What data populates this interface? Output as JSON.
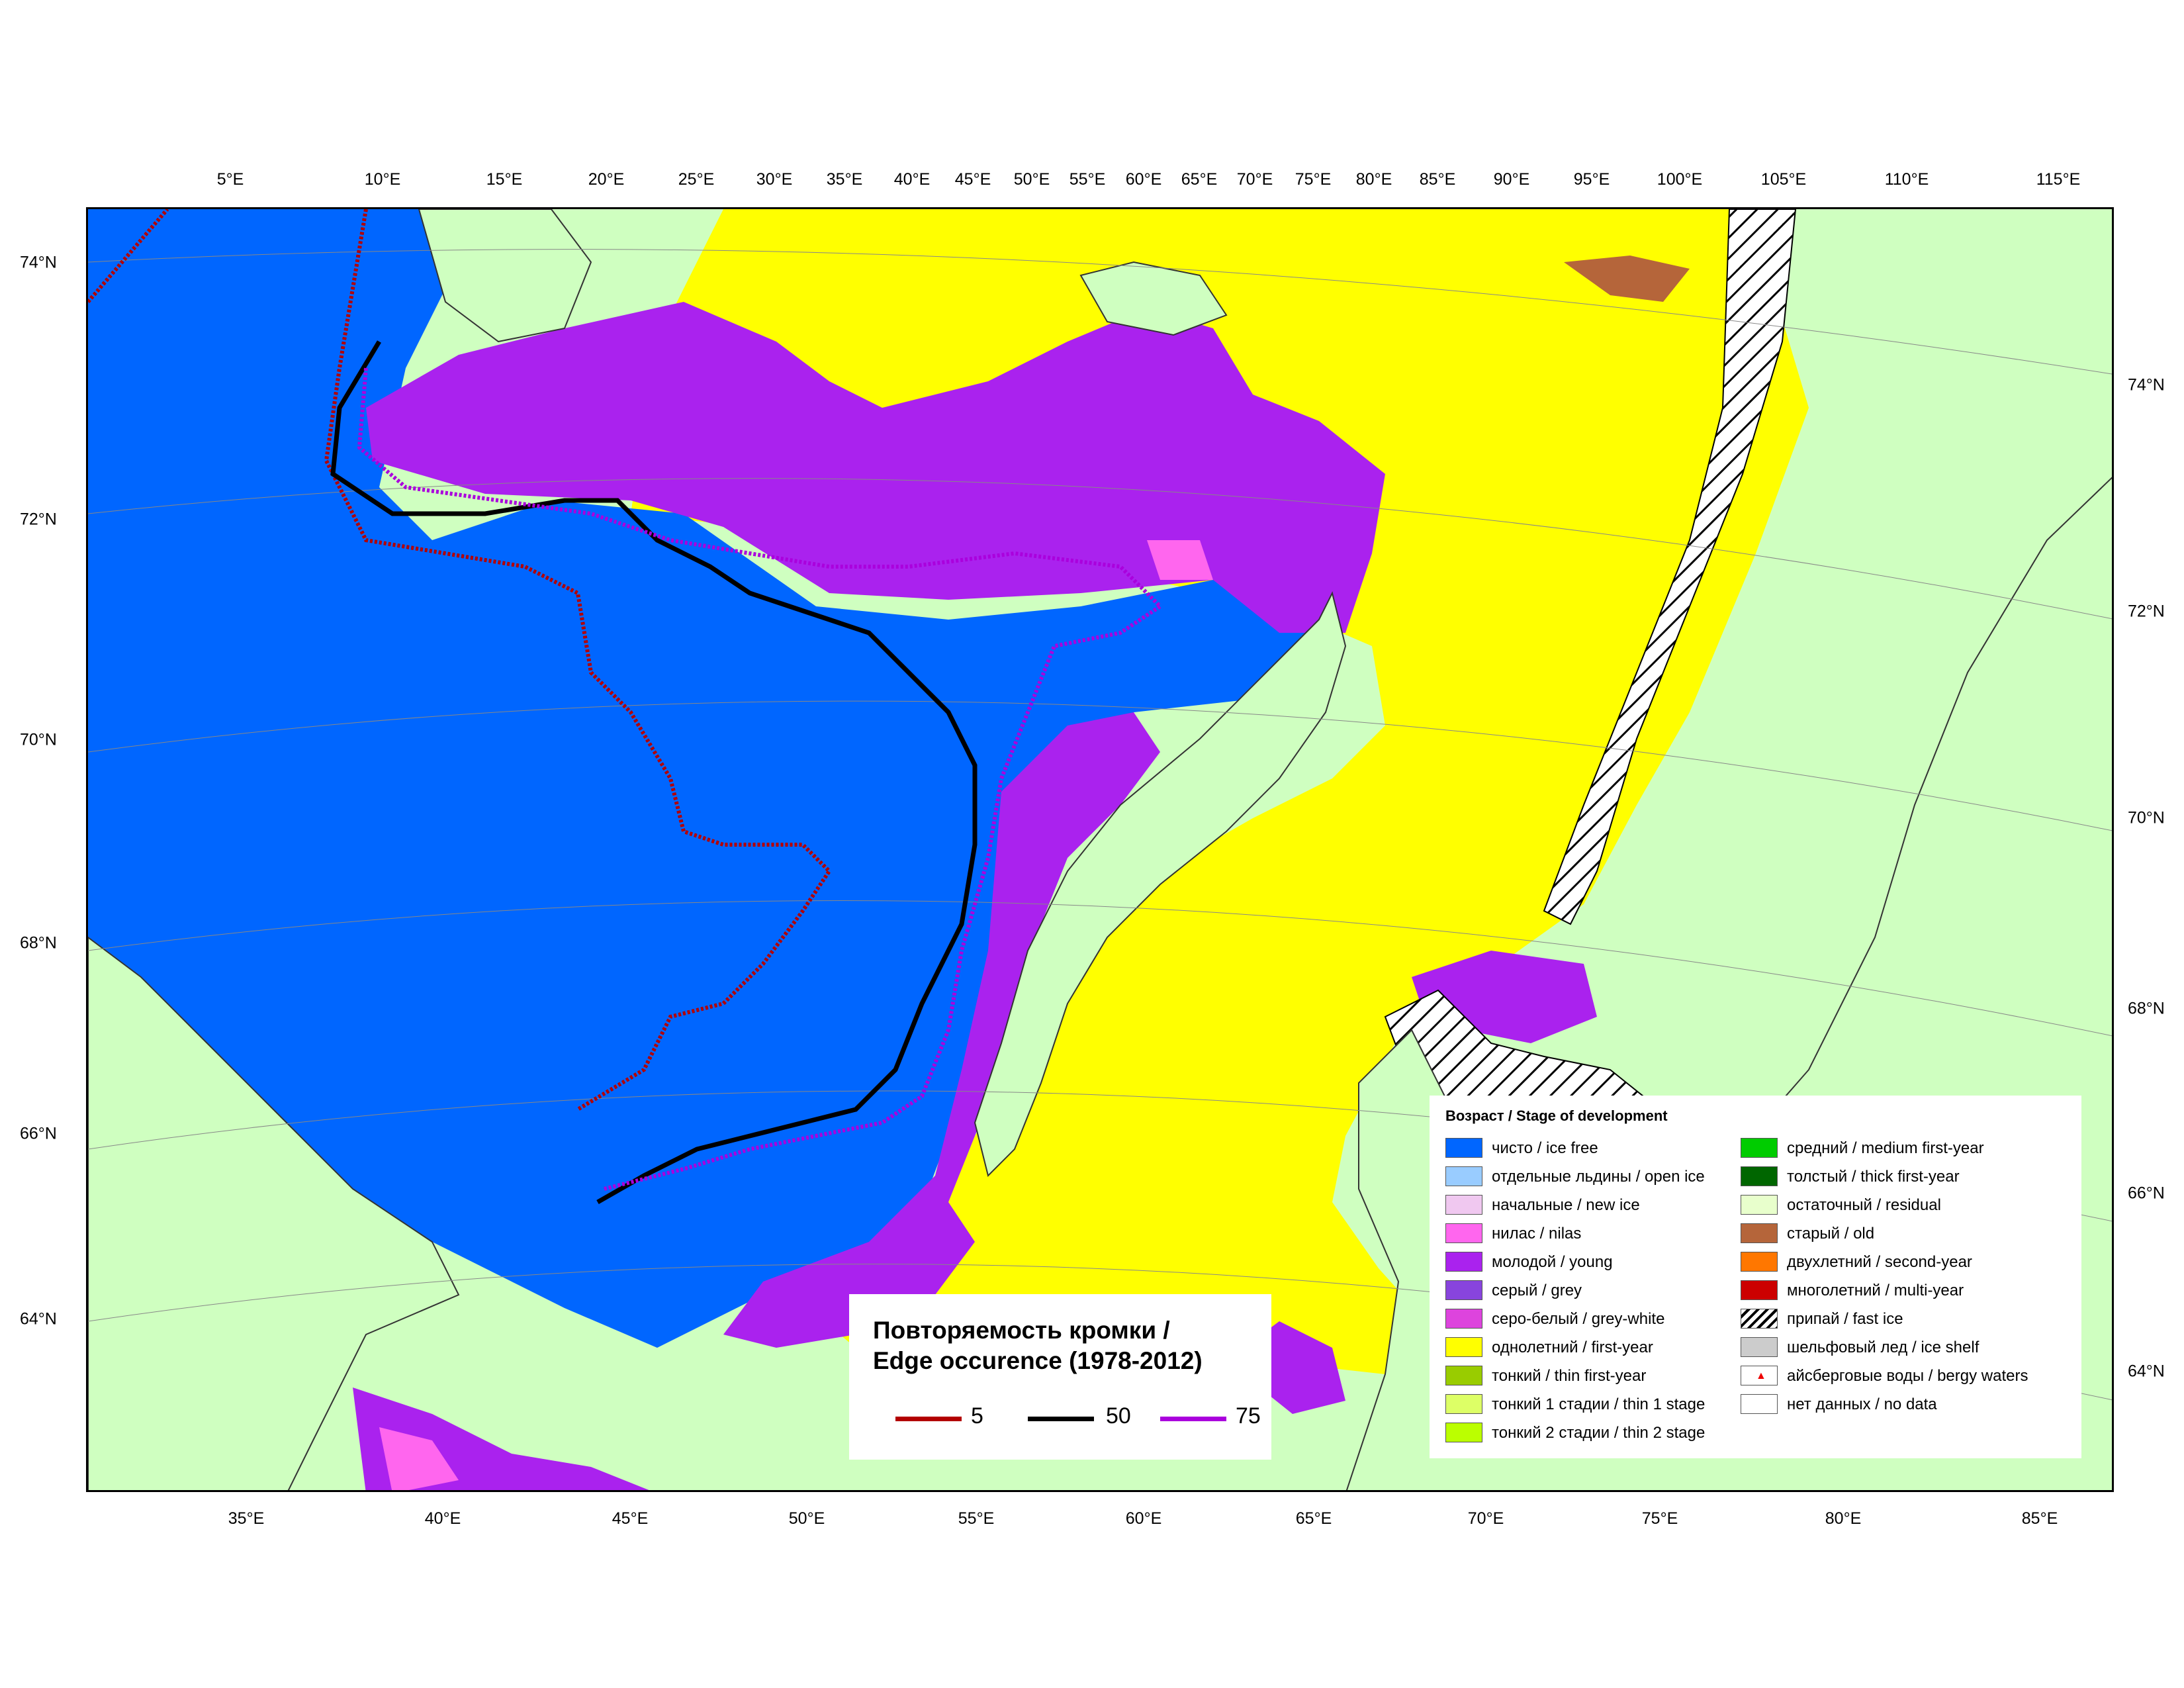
{
  "map": {
    "top_lon_labels": [
      "5°E",
      "10°E",
      "15°E",
      "20°E",
      "25°E",
      "30°E",
      "35°E",
      "40°E",
      "45°E",
      "50°E",
      "55°E",
      "60°E",
      "65°E",
      "70°E",
      "75°E",
      "80°E",
      "85°E",
      "90°E",
      "95°E",
      "100°E",
      "105°E",
      "110°E",
      "115°E"
    ],
    "bottom_lon_labels": [
      "35°E",
      "40°E",
      "45°E",
      "50°E",
      "55°E",
      "60°E",
      "65°E",
      "70°E",
      "75°E",
      "80°E",
      "85°E"
    ],
    "left_lat_labels": [
      "74°N",
      "72°N",
      "70°N",
      "68°N",
      "66°N",
      "64°N"
    ],
    "right_lat_labels": [
      "74°N",
      "72°N",
      "70°N",
      "68°N",
      "66°N",
      "64°N"
    ],
    "colors": {
      "land": "#cfffc0",
      "ice_free": "#0066ff",
      "young": "#aa22ee",
      "first_year": "#ffff00",
      "nilas": "#ff66ee",
      "old": "#b5653a"
    }
  },
  "edge_legend": {
    "title_line1": "Повторяемость кромки /",
    "title_line2": "Edge occurence (1978-2012)",
    "items": [
      {
        "label": "5",
        "color": "#b30000"
      },
      {
        "label": "50",
        "color": "#000000"
      },
      {
        "label": "75",
        "color": "#aa00dd"
      }
    ]
  },
  "legend": {
    "title": "Возраст / Stage of development",
    "items": [
      {
        "label": "чисто / ice free",
        "color": "#0066ff"
      },
      {
        "label": "отдельные льдины / open ice",
        "color": "#99ccff"
      },
      {
        "label": "начальные / new ice",
        "color": "#f0c8f0"
      },
      {
        "label": "нилас / nilas",
        "color": "#ff66ee"
      },
      {
        "label": "молодой / young",
        "color": "#aa22ee"
      },
      {
        "label": "серый / grey",
        "color": "#8844dd"
      },
      {
        "label": "серо-белый / grey-white",
        "color": "#dd44dd"
      },
      {
        "label": "однолетний / first-year",
        "color": "#ffff00"
      },
      {
        "label": "тонкий / thin first-year",
        "color": "#99cc00"
      },
      {
        "label": "тонкий 1 стадии / thin 1 stage",
        "color": "#ddff66"
      },
      {
        "label": "тонкий 2 стадии / thin 2 stage",
        "color": "#bbff00"
      },
      {
        "label": "средний / medium first-year",
        "color": "#00cc00"
      },
      {
        "label": "толстый / thick first-year",
        "color": "#006600"
      },
      {
        "label": "остаточный / residual",
        "color": "#e8ffcc"
      },
      {
        "label": "старый / old",
        "color": "#b5653a"
      },
      {
        "label": "двухлетний / second-year",
        "color": "#ff7700"
      },
      {
        "label": "многолетний / multi-year",
        "color": "#cc0000"
      },
      {
        "label": "припай / fast ice",
        "color": "hatch"
      },
      {
        "label": "шельфовый лед / ice shelf",
        "color": "#cccccc"
      },
      {
        "label": "айсберговые воды / bergy waters",
        "color": "bergy"
      },
      {
        "label": "нет данных / no data",
        "color": "#ffffff"
      }
    ]
  }
}
